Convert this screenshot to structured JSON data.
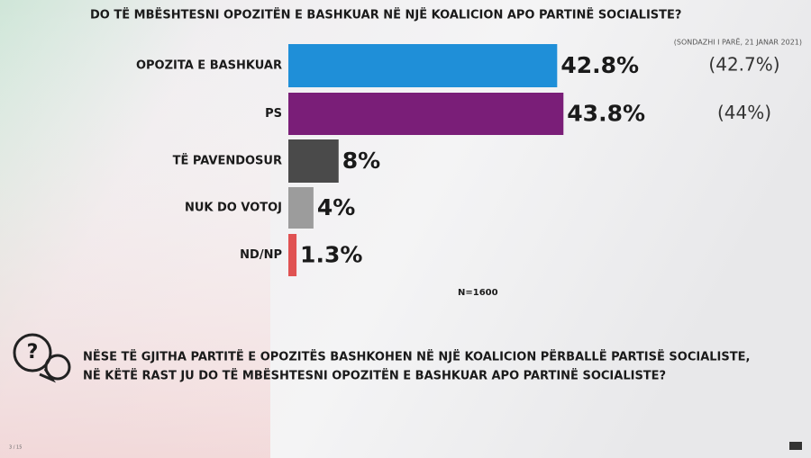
{
  "chart_data": {
    "type": "bar",
    "orientation": "horizontal",
    "title": "DO TË MBËSHTESNI OPOZITËN E BASHKUAR NË NJË KOALICION APO PARTINË SOCIALISTE?",
    "source": "(SONDAZHI I PARË, 21 JANAR 2021)",
    "categories": [
      "OPOZITA E BASHKUAR",
      "PS",
      "TË PAVENDOSUR",
      "NUK DO VOTOJ",
      "ND/NP"
    ],
    "values": [
      42.8,
      43.8,
      8,
      4,
      1.3
    ],
    "value_labels": [
      "42.8%",
      "43.8%",
      "8%",
      "4%",
      "1.3%"
    ],
    "colors": [
      "#1f8fd8",
      "#7a1e78",
      "#4a4a4a",
      "#9c9c9c",
      "#e05252"
    ],
    "previous_values": [
      42.7,
      44
    ],
    "previous_labels": [
      "(42.7%)",
      "(44%)"
    ],
    "sample_note": "N=1600",
    "question": [
      "NËSE TË GJITHA PARTITË E OPOZITËS BASHKOHEN NË NJË KOALICION PËRBALLË PARTISË SOCIALISTE,",
      "NË KËTË RAST JU DO TË MBËSHTESNI OPOZITËN E BASHKUAR APO PARTINË SOCIALISTE?"
    ],
    "page_number": "3 / 15"
  }
}
